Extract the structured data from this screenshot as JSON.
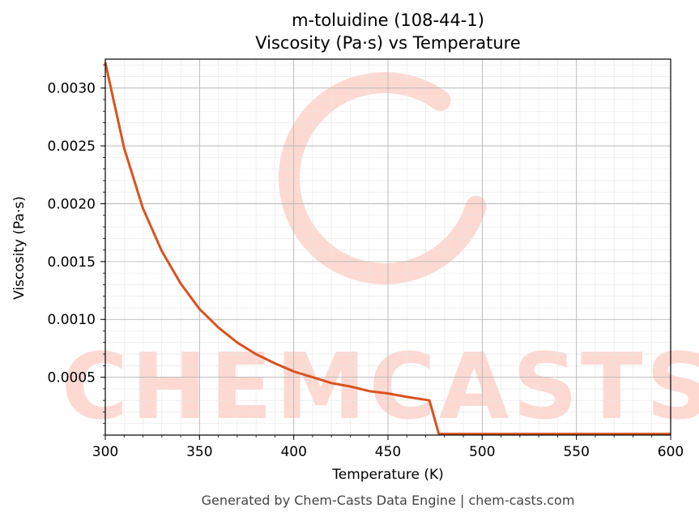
{
  "chart_data": {
    "type": "line",
    "title": "m-toluidine (108-44-1)",
    "subtitle": "Viscosity (Pa·s) vs Temperature",
    "xlabel": "Temperature (K)",
    "ylabel": "Viscosity (Pa·s)",
    "xlim": [
      300,
      600
    ],
    "ylim": [
      0.0,
      0.00325
    ],
    "xticks": [
      300,
      350,
      400,
      450,
      500,
      550,
      600
    ],
    "yticks": [
      0.0005,
      0.001,
      0.0015,
      0.002,
      0.0025,
      0.003
    ],
    "ytick_labels": [
      "0.0005",
      "0.0010",
      "0.0015",
      "0.0020",
      "0.0025",
      "0.0030"
    ],
    "grid": true,
    "minor_grid": true,
    "series": [
      {
        "color": "#d9531e",
        "x": [
          300,
          310,
          320,
          330,
          340,
          350,
          360,
          370,
          380,
          390,
          400,
          410,
          420,
          430,
          440,
          450,
          460,
          472,
          477,
          480,
          500,
          550,
          600
        ],
        "y": [
          0.00322,
          0.00248,
          0.00196,
          0.00159,
          0.00131,
          0.00109,
          0.00093,
          0.0008,
          0.0007,
          0.00062,
          0.00055,
          0.0005,
          0.00045,
          0.00042,
          0.00038,
          0.00036,
          0.00033,
          0.0003,
          1e-05,
          1e-05,
          1e-05,
          1e-05,
          1e-05
        ]
      }
    ]
  },
  "watermark": {
    "text": "CHEMCASTS",
    "color": "#fdd9d2"
  },
  "footer": "Generated by Chem-Casts Data Engine | chem-casts.com"
}
